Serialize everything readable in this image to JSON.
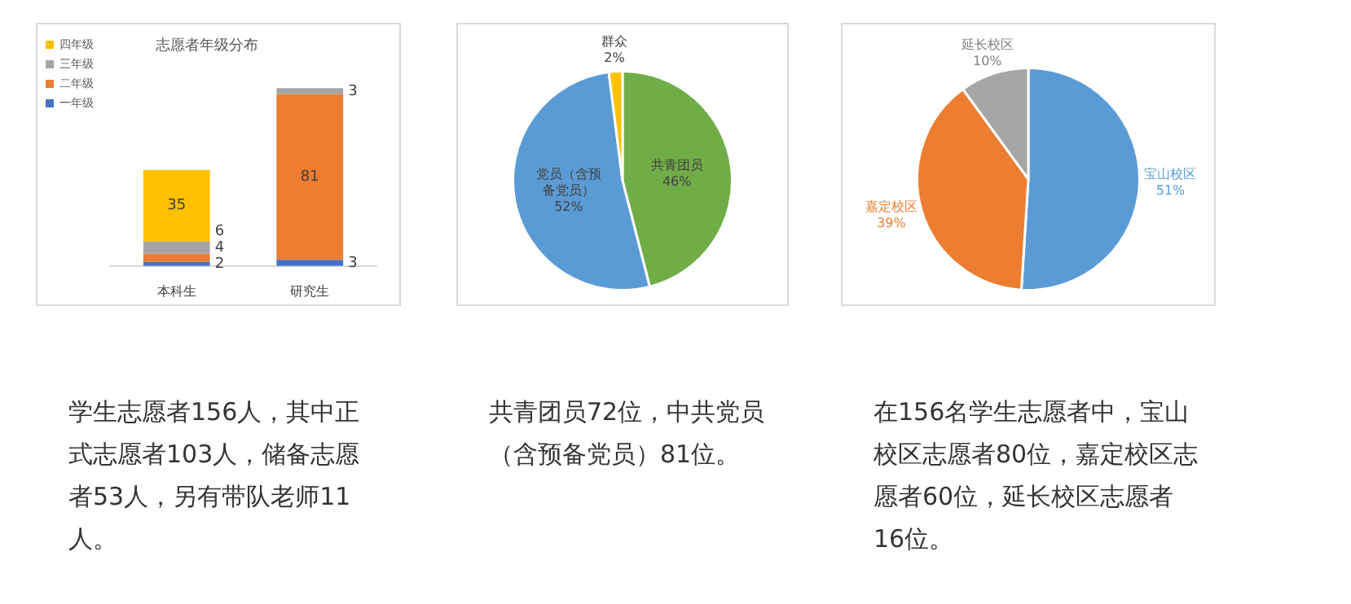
{
  "chart_data": [
    {
      "type": "bar",
      "title": "志愿者年级分布",
      "categories": [
        "本科生",
        "研究生"
      ],
      "stacked": true,
      "data_labels": true,
      "legend": "top left",
      "tick_labels": "x",
      "grid": false,
      "series": [
        {
          "name": "一年级",
          "color": "#4472c4",
          "values": [
            2,
            3
          ]
        },
        {
          "name": "二年级",
          "color": "#ed7d31",
          "values": [
            4,
            81
          ]
        },
        {
          "name": "三年级",
          "color": "#a5a5a5",
          "values": [
            6,
            3
          ]
        },
        {
          "name": "四年级",
          "color": "#ffc000",
          "values": [
            35,
            null
          ]
        }
      ],
      "annotations": [
        "学生志愿者156人，其中正式志愿者103人，储备志愿者53人，另有带队老师11人。"
      ]
    },
    {
      "type": "pie",
      "categories": [
        "共青团员",
        "党员（含预备党员）",
        "群众"
      ],
      "values": [
        46,
        52,
        2
      ],
      "colors": [
        "#70ad47",
        "#5b9bd5",
        "#ffc000"
      ],
      "value_labels": [
        "46%",
        "52%",
        "2%"
      ],
      "annotations": [
        "共青团员72位，中共党员（含预备党员）81位。"
      ]
    },
    {
      "type": "pie",
      "categories": [
        "宝山校区",
        "嘉定校区",
        "延长校区"
      ],
      "values": [
        51,
        39,
        10
      ],
      "colors": [
        "#5b9bd5",
        "#ed7d31",
        "#a5a5a5"
      ],
      "value_labels": [
        "51%",
        "39%",
        "10%"
      ],
      "annotations": [
        "在156名学生志愿者中，宝山校区志愿者80位，嘉定校区志愿者60位，延长校区志愿者16位。"
      ]
    }
  ]
}
